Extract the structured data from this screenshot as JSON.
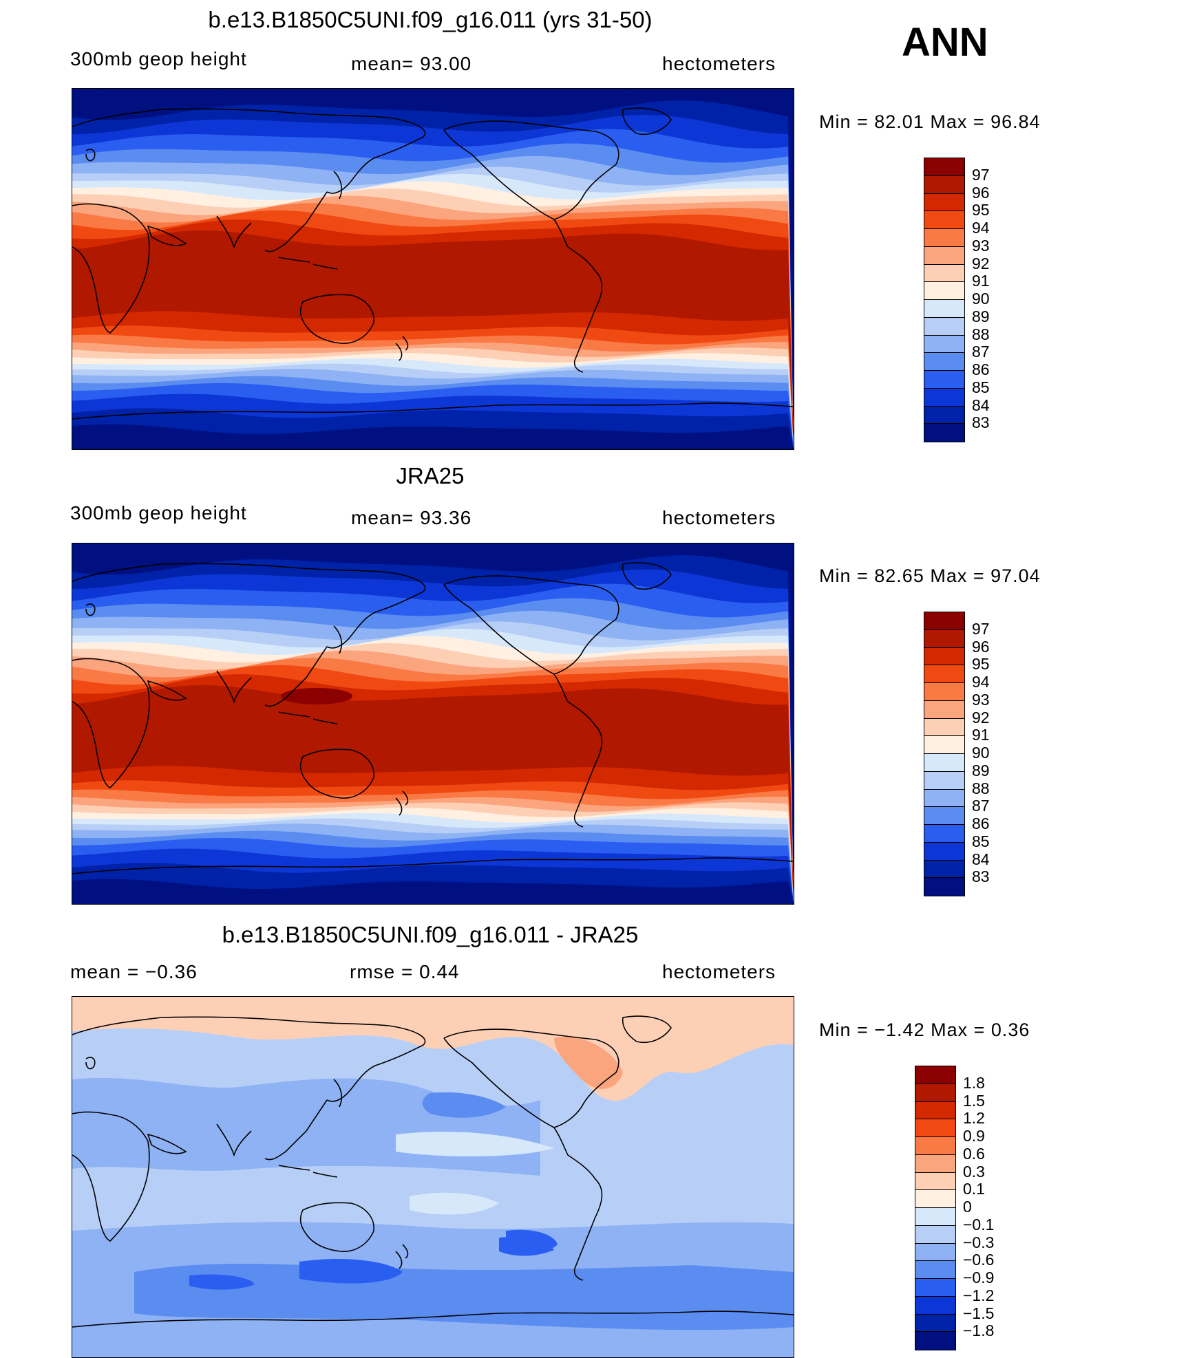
{
  "season_label": "ANN",
  "chart_data": [
    {
      "type": "heatmap",
      "title": "b.e13.B1850C5UNI.f09_g16.011 (yrs 31-50)",
      "left_label": "300mb  geop  height",
      "center_label": "mean=   93.00",
      "right_label": "hectometers",
      "min_max_text": "Min  =    82.01  Max  =    96.84",
      "mean": 93.0,
      "min": 82.01,
      "max": 96.84,
      "units": "hectometers",
      "contour_levels": [
        "97",
        "96",
        "95",
        "94",
        "93",
        "92",
        "91",
        "90",
        "89",
        "88",
        "87",
        "86",
        "85",
        "84",
        "83"
      ],
      "colors": [
        "#8b0000",
        "#b01800",
        "#d42800",
        "#f04a12",
        "#fa7a45",
        "#fba57f",
        "#fdd0b5",
        "#fff0e2",
        "#d8e8fb",
        "#b7cff7",
        "#8eb2f4",
        "#5b8cf0",
        "#2a5ef0",
        "#0d36d6",
        "#0022a8",
        "#001080"
      ],
      "tropical_peak_max": false
    },
    {
      "type": "heatmap",
      "title": "JRA25",
      "left_label": "300mb  geop  height",
      "center_label": "mean=   93.36",
      "right_label": "hectometers",
      "min_max_text": "Min  =    82.65  Max  =    97.04",
      "mean": 93.36,
      "min": 82.65,
      "max": 97.04,
      "units": "hectometers",
      "contour_levels": [
        "97",
        "96",
        "95",
        "94",
        "93",
        "92",
        "91",
        "90",
        "89",
        "88",
        "87",
        "86",
        "85",
        "84",
        "83"
      ],
      "colors": [
        "#8b0000",
        "#b01800",
        "#d42800",
        "#f04a12",
        "#fa7a45",
        "#fba57f",
        "#fdd0b5",
        "#fff0e2",
        "#d8e8fb",
        "#b7cff7",
        "#8eb2f4",
        "#5b8cf0",
        "#2a5ef0",
        "#0d36d6",
        "#0022a8",
        "#001080"
      ],
      "tropical_peak_max": true
    },
    {
      "type": "heatmap",
      "title": "b.e13.B1850C5UNI.f09_g16.011 - JRA25",
      "left_label": "mean  =    −0.36",
      "center_label": "rmse  =     0.44",
      "right_label": "hectometers",
      "min_max_text": "Min  =    −1.42  Max  =     0.36",
      "mean": -0.36,
      "rmse": 0.44,
      "min": -1.42,
      "max": 0.36,
      "units": "hectometers",
      "contour_levels": [
        "1.8",
        "1.5",
        "1.2",
        "0.9",
        "0.6",
        "0.3",
        "0.1",
        "0",
        "−0.1",
        "−0.3",
        "−0.6",
        "−0.9",
        "−1.2",
        "−1.5",
        "−1.8"
      ],
      "colors": [
        "#8b0000",
        "#b01800",
        "#d42800",
        "#f04a12",
        "#fa7a45",
        "#fba57f",
        "#fdd0b5",
        "#fff0e2",
        "#d8e8fb",
        "#b7cff7",
        "#8eb2f4",
        "#5b8cf0",
        "#2a5ef0",
        "#0d36d6",
        "#0022a8",
        "#001080"
      ]
    }
  ]
}
